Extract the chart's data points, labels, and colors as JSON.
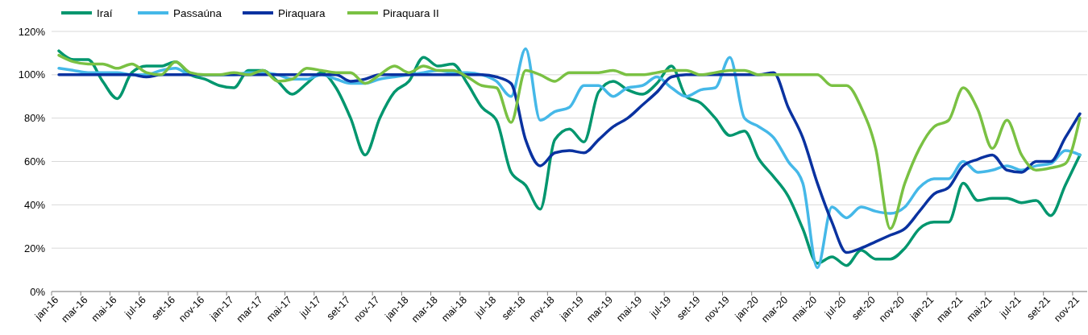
{
  "chart_data": {
    "type": "line",
    "categories": [
      "jan-16",
      null,
      "mar-16",
      null,
      "mai-16",
      null,
      "jul-16",
      null,
      "set-16",
      null,
      "nov-16",
      null,
      "jan-17",
      null,
      "mar-17",
      null,
      "mai-17",
      null,
      "jul-17",
      null,
      "set-17",
      null,
      "nov-17",
      null,
      "jan-18",
      null,
      "mar-18",
      null,
      "mai-18",
      null,
      "jul-18",
      null,
      "set-18",
      null,
      "nov-18",
      null,
      "jan-19",
      null,
      "mar-19",
      null,
      "mai-19",
      null,
      "jul-19",
      null,
      "set-19",
      null,
      "nov-19",
      null,
      "jan-20",
      null,
      "mar-20",
      null,
      "mai-20",
      null,
      "jul-20",
      null,
      "set-20",
      null,
      "nov-20",
      null,
      "jan-21",
      null,
      "mar-21",
      null,
      "mai-21",
      null,
      "jul-21",
      null,
      "set-21",
      null,
      "nov-21"
    ],
    "series": [
      {
        "name": "Iraí",
        "color": "#00966e",
        "values": [
          111,
          107,
          107,
          97,
          89,
          101,
          104,
          104,
          106,
          100,
          98,
          95,
          94,
          102,
          102,
          97,
          91,
          96,
          101,
          94,
          80,
          63,
          80,
          92,
          97,
          108,
          104,
          105,
          96,
          85,
          79,
          55,
          49,
          38,
          70,
          75,
          69,
          92,
          97,
          93,
          91,
          96,
          104,
          90,
          87,
          80,
          72,
          74,
          61,
          53,
          44,
          29,
          13,
          16,
          12,
          19,
          15,
          15,
          20,
          29,
          32,
          32,
          50,
          42,
          43,
          43,
          41,
          42,
          35,
          49,
          63
        ]
      },
      {
        "name": "Passaúna",
        "color": "#45b8e8",
        "values": [
          103,
          102,
          101,
          101,
          101,
          100,
          100,
          102,
          103,
          100,
          100,
          100,
          100,
          101,
          101,
          100,
          98,
          98,
          100,
          98,
          96,
          96,
          98,
          99,
          100,
          101,
          102,
          101,
          101,
          100,
          97,
          90,
          112,
          79,
          83,
          85,
          95,
          95,
          90,
          94,
          95,
          99,
          94,
          90,
          93,
          94,
          108,
          80,
          76,
          71,
          60,
          50,
          11,
          39,
          34,
          39,
          37,
          36,
          39,
          48,
          52,
          52,
          60,
          55,
          56,
          58,
          56,
          58,
          59,
          65,
          63
        ]
      },
      {
        "name": "Piraquara",
        "color": "#0a32a0",
        "values": [
          100,
          100,
          100,
          100,
          100,
          100,
          99,
          100,
          100,
          100,
          100,
          100,
          100,
          100,
          100,
          100,
          100,
          100,
          100,
          100,
          97,
          98,
          100,
          100,
          100,
          100,
          100,
          100,
          100,
          100,
          99,
          96,
          70,
          58,
          64,
          65,
          64,
          70,
          76,
          80,
          86,
          92,
          99,
          100,
          100,
          100,
          100,
          100,
          100,
          101,
          85,
          71,
          50,
          32,
          18,
          20,
          23,
          26,
          29,
          37,
          45,
          48,
          58,
          61,
          63,
          56,
          55,
          60,
          60,
          71,
          82
        ]
      },
      {
        "name": "Piraquara II",
        "color": "#7ac143",
        "values": [
          109,
          106,
          105,
          105,
          103,
          105,
          101,
          100,
          106,
          101,
          100,
          100,
          101,
          100,
          102,
          97,
          98,
          103,
          102,
          101,
          101,
          96,
          100,
          104,
          101,
          104,
          102,
          102,
          99,
          95,
          94,
          78,
          102,
          100,
          97,
          101,
          101,
          101,
          102,
          100,
          100,
          101,
          102,
          102,
          100,
          101,
          102,
          102,
          100,
          100,
          100,
          100,
          100,
          95,
          95,
          85,
          66,
          29,
          50,
          66,
          76,
          79,
          94,
          84,
          66,
          79,
          63,
          56,
          57,
          59,
          80
        ]
      }
    ],
    "ylim": [
      0,
      120
    ],
    "yticks": [
      {
        "value": 0,
        "label": "0%"
      },
      {
        "value": 20,
        "label": "20%"
      },
      {
        "value": 40,
        "label": "40%"
      },
      {
        "value": 60,
        "label": "60%"
      },
      {
        "value": 80,
        "label": "80%"
      },
      {
        "value": 100,
        "label": "100%"
      },
      {
        "value": 120,
        "label": "120%"
      }
    ],
    "grid": "y",
    "legend": "top left",
    "marker": "none",
    "line_style": "solid"
  }
}
